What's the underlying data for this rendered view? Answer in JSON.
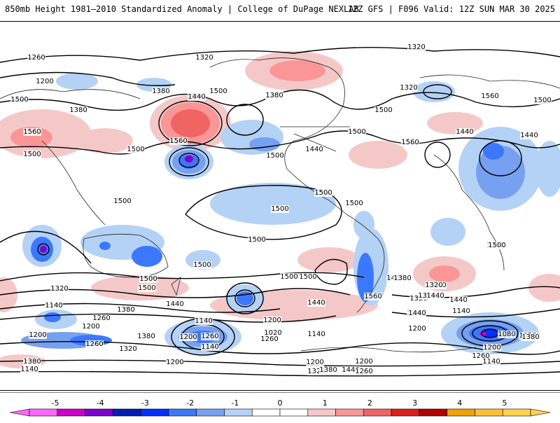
{
  "header": {
    "left": "850mb Height 1981–2010 Standardized Anomaly | College of DuPage NEXLAB",
    "right": "12Z GFS | F096 Valid: 12Z SUN MAR 30 2025"
  },
  "contour_labels": [
    "1260",
    "1320",
    "1200",
    "1320",
    "1380",
    "1500",
    "1380",
    "1440",
    "1560",
    "1500",
    "1440",
    "1500",
    "1500",
    "1560",
    "1500",
    "1380",
    "1320",
    "1500",
    "1440",
    "1500",
    "1560",
    "1500",
    "1440",
    "1500",
    "1380",
    "1500",
    "1560",
    "1500",
    "1500",
    "1500",
    "1500",
    "1500",
    "1560",
    "1500",
    "1440",
    "1320",
    "1380",
    "1260",
    "1200",
    "1140",
    "1200",
    "1260",
    "1320",
    "1380",
    "1140",
    "1200",
    "1140",
    "1020",
    "1260",
    "1200",
    "1140",
    "1380",
    "1440",
    "1500",
    "1560",
    "1440",
    "1320",
    "1260",
    "1200",
    "1140",
    "1080",
    "1020",
    "1200",
    "1260",
    "1140",
    "1200",
    "1320",
    "1440",
    "1380",
    "1200",
    "1260",
    "1140",
    "1200",
    "1260",
    "1320",
    "1440",
    "1380",
    "1320",
    "1440",
    "1500",
    "1380",
    "1440",
    "1500",
    "1500"
  ],
  "colorbar": {
    "ticks": [
      "-5",
      "-4",
      "-3",
      "-2",
      "-1",
      "0",
      "1",
      "2",
      "3",
      "4",
      "5"
    ],
    "colors": [
      "#ff66ff",
      "#cc00cc",
      "#7d00cc",
      "#001eb4",
      "#0032ff",
      "#3c78ff",
      "#78a0f0",
      "#b4d2f5",
      "#ffffff",
      "#ffffff",
      "#f5c8c8",
      "#fa9696",
      "#f06464",
      "#dc1e1e",
      "#b40000",
      "#f0a000",
      "#ffbe32",
      "#ffd250"
    ]
  }
}
